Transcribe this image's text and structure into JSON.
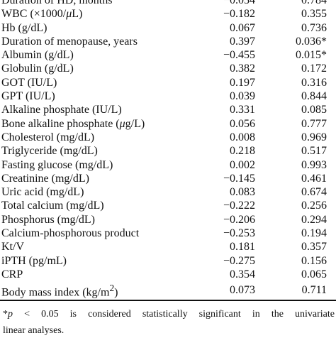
{
  "table": {
    "rows": [
      {
        "variable": "Duration of HD, months",
        "r": "−0.054",
        "p": "0.784"
      },
      {
        "variable_parts": [
          "WBC (×1000/",
          "μ",
          "L)"
        ],
        "r": "−0.182",
        "p": "0.355"
      },
      {
        "variable": "Hb (g/dL)",
        "r": "0.067",
        "p": "0.736"
      },
      {
        "variable": "Duration of menopause, years",
        "r": "0.397",
        "p": "0.036*"
      },
      {
        "variable": "Albumin (g/dL)",
        "r": "−0.455",
        "p": "0.015*"
      },
      {
        "variable": "Globulin (g/dL)",
        "r": "0.382",
        "p": "0.172"
      },
      {
        "variable": "GOT (IU/L)",
        "r": "0.197",
        "p": "0.316"
      },
      {
        "variable": "GPT (IU/L)",
        "r": "0.039",
        "p": "0.844"
      },
      {
        "variable": "Alkaline phosphate (IU/L)",
        "r": "0.331",
        "p": "0.085"
      },
      {
        "variable_parts": [
          "Bone alkaline phosphate (",
          "μ",
          "g/L)"
        ],
        "r": "0.056",
        "p": "0.777"
      },
      {
        "variable": "Cholesterol (mg/dL)",
        "r": "0.008",
        "p": "0.969"
      },
      {
        "variable": "Triglyceride (mg/dL)",
        "r": "0.218",
        "p": "0.517"
      },
      {
        "variable": "Fasting glucose (mg/dL)",
        "r": "0.002",
        "p": "0.993"
      },
      {
        "variable": "Creatinine (mg/dL)",
        "r": "−0.145",
        "p": "0.461"
      },
      {
        "variable": "Uric acid (mg/dL)",
        "r": "0.083",
        "p": "0.674"
      },
      {
        "variable": "Total calcium (mg/dL)",
        "r": "−0.222",
        "p": "0.256"
      },
      {
        "variable": "Phosphorus (mg/dL)",
        "r": "−0.206",
        "p": "0.294"
      },
      {
        "variable": "Calcium-phosphorous product",
        "r": "−0.253",
        "p": "0.194"
      },
      {
        "variable": "Kt/V",
        "r": "0.181",
        "p": "0.357"
      },
      {
        "variable": "iPTH (pg/mL)",
        "r": "−0.275",
        "p": "0.156"
      },
      {
        "variable": "CRP",
        "r": "0.354",
        "p": "0.065"
      },
      {
        "variable_parts": [
          "Body mass index (kg/m",
          "2",
          ")"
        ],
        "r": "0.073",
        "p": "0.711"
      }
    ]
  },
  "footnote": {
    "star": "*",
    "p": "p",
    "lt": " < 0.05 is considered statistically significant in the univariate",
    "line2": "linear analyses."
  }
}
